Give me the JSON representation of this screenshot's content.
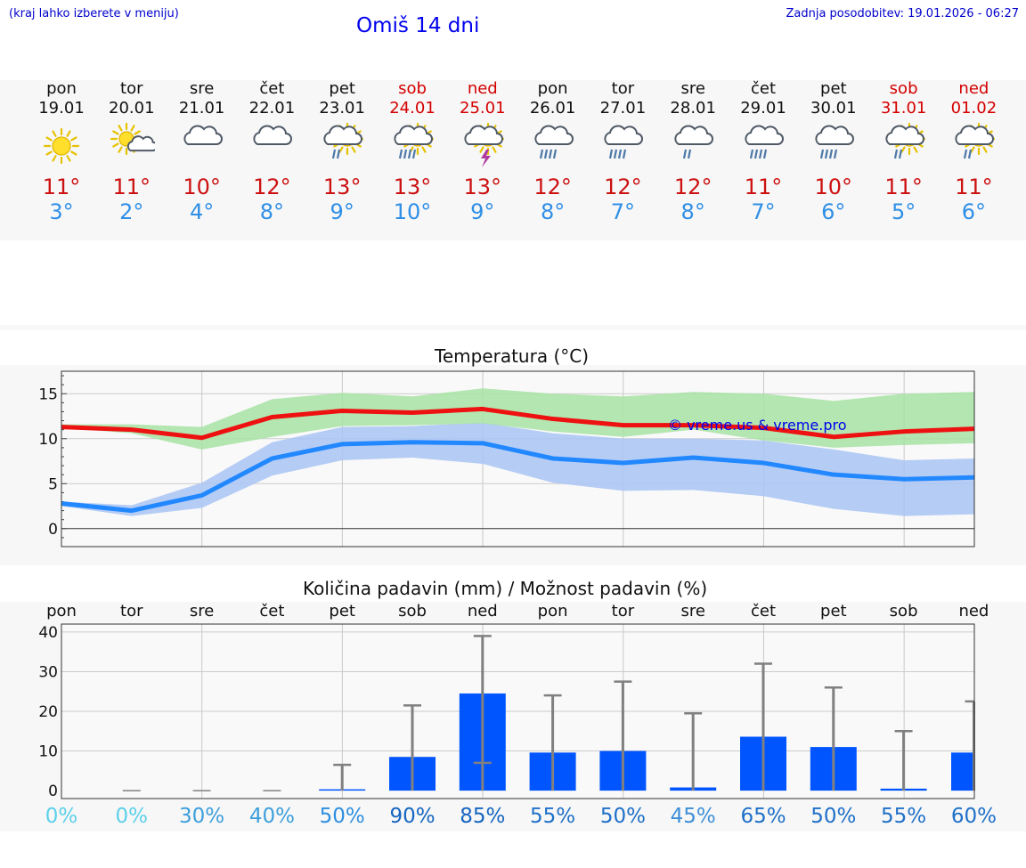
{
  "header": {
    "hint": "(kraj lahko izberete v meniju)",
    "title": "Omiš 14 dni",
    "updated": "Zadnja posodobitev: 19.01.2026 - 06:27"
  },
  "days": [
    {
      "wd": "pon",
      "date": "19.01",
      "icon": "sun-icon",
      "tmax": "11°",
      "tmin": "3°",
      "weekend": false
    },
    {
      "wd": "tor",
      "date": "20.01",
      "icon": "sun-cloud-icon",
      "tmax": "11°",
      "tmin": "2°",
      "weekend": false
    },
    {
      "wd": "sre",
      "date": "21.01",
      "icon": "cloud-icon",
      "tmax": "10°",
      "tmin": "4°",
      "weekend": false
    },
    {
      "wd": "čet",
      "date": "22.01",
      "icon": "cloud-icon",
      "tmax": "12°",
      "tmin": "8°",
      "weekend": false
    },
    {
      "wd": "pet",
      "date": "23.01",
      "icon": "sun-cloud-rain-icon",
      "tmax": "13°",
      "tmin": "9°",
      "weekend": false
    },
    {
      "wd": "sob",
      "date": "24.01",
      "icon": "sun-cloud-heavy-rain-icon",
      "tmax": "13°",
      "tmin": "10°",
      "weekend": true
    },
    {
      "wd": "ned",
      "date": "25.01",
      "icon": "sun-thunderstorm-icon",
      "tmax": "13°",
      "tmin": "9°",
      "weekend": true
    },
    {
      "wd": "pon",
      "date": "26.01",
      "icon": "cloud-heavy-rain-icon",
      "tmax": "12°",
      "tmin": "8°",
      "weekend": false
    },
    {
      "wd": "tor",
      "date": "27.01",
      "icon": "cloud-heavy-rain-icon",
      "tmax": "12°",
      "tmin": "7°",
      "weekend": false
    },
    {
      "wd": "sre",
      "date": "28.01",
      "icon": "cloud-rain-icon",
      "tmax": "12°",
      "tmin": "8°",
      "weekend": false
    },
    {
      "wd": "čet",
      "date": "29.01",
      "icon": "cloud-heavy-rain-icon",
      "tmax": "11°",
      "tmin": "7°",
      "weekend": false
    },
    {
      "wd": "pet",
      "date": "30.01",
      "icon": "cloud-heavy-rain-icon",
      "tmax": "10°",
      "tmin": "6°",
      "weekend": false
    },
    {
      "wd": "sob",
      "date": "31.01",
      "icon": "sun-cloud-rain-icon",
      "tmax": "11°",
      "tmin": "5°",
      "weekend": true
    },
    {
      "wd": "ned",
      "date": "01.02",
      "icon": "sun-cloud-rain-icon",
      "tmax": "11°",
      "tmin": "6°",
      "weekend": true
    }
  ],
  "colors": {
    "max_line": "#ee1111",
    "min_line": "#2288ff",
    "max_band": "#a7e3a3",
    "min_band": "#a9c4f5",
    "bar": "#0055ff",
    "error": "#808080",
    "watermark": "#0000ee"
  },
  "chart_data": [
    {
      "type": "line",
      "title": "Temperatura (°C)",
      "watermark": "© vreme.us & vreme.pro",
      "ylim": [
        -2,
        17.5
      ],
      "yticks": [
        0,
        5,
        10,
        15
      ],
      "x": [
        0,
        1,
        2,
        3,
        4,
        5,
        6,
        7,
        8,
        9,
        10,
        11,
        12,
        13
      ],
      "series": [
        {
          "name": "max",
          "values": [
            11.3,
            11.0,
            10.1,
            12.4,
            13.1,
            12.9,
            13.3,
            12.2,
            11.5,
            11.5,
            11.2,
            10.2,
            10.8,
            11.1
          ],
          "band_low": [
            11.2,
            10.6,
            8.8,
            10.2,
            11.4,
            11.5,
            11.7,
            10.8,
            10.2,
            11.0,
            9.8,
            9.0,
            9.3,
            9.5
          ],
          "band_high": [
            11.6,
            11.6,
            11.3,
            14.4,
            15.1,
            14.7,
            15.6,
            15.0,
            14.7,
            15.2,
            15.0,
            14.2,
            15.0,
            15.2
          ]
        },
        {
          "name": "min",
          "values": [
            2.8,
            2.0,
            3.7,
            7.8,
            9.4,
            9.6,
            9.5,
            7.8,
            7.3,
            7.9,
            7.3,
            6.0,
            5.5,
            5.7
          ],
          "band_low": [
            2.5,
            1.4,
            2.3,
            5.9,
            7.6,
            7.9,
            7.2,
            5.1,
            4.2,
            4.3,
            3.6,
            2.2,
            1.4,
            1.6
          ],
          "band_high": [
            3.0,
            2.6,
            5.1,
            9.6,
            11.3,
            11.4,
            11.8,
            10.6,
            10.0,
            10.0,
            9.8,
            8.8,
            7.6,
            7.8
          ]
        }
      ]
    },
    {
      "type": "bar",
      "title": "Količina padavin (mm) / Možnost padavin (%)",
      "categories": [
        "pon",
        "tor",
        "sre",
        "čet",
        "pet",
        "sob",
        "ned",
        "pon",
        "tor",
        "sre",
        "čet",
        "pet",
        "sob",
        "ned"
      ],
      "values": [
        0,
        0,
        0,
        0,
        0.2,
        8.5,
        24.5,
        9.6,
        10.0,
        0.8,
        13.6,
        11.0,
        0.5,
        9.6
      ],
      "err_low": [
        0,
        0,
        0,
        0,
        0,
        0,
        7.0,
        0,
        0,
        0,
        0,
        0,
        0,
        0
      ],
      "err_high": [
        0,
        0,
        0,
        0,
        6.5,
        21.5,
        39.0,
        24.0,
        27.5,
        19.5,
        32.0,
        26.0,
        15.0,
        22.5
      ],
      "ylim": [
        -2,
        42
      ],
      "yticks": [
        0,
        10,
        20,
        30,
        40
      ],
      "chance": [
        "0%",
        "0%",
        "30%",
        "40%",
        "50%",
        "90%",
        "85%",
        "55%",
        "50%",
        "45%",
        "65%",
        "50%",
        "55%",
        "60%"
      ],
      "chance_colors": [
        "#5cd0ea",
        "#5cd0ea",
        "#3d9fdc",
        "#3d9fdc",
        "#2f8fe0",
        "#1565c0",
        "#1565c0",
        "#1f70c8",
        "#1f70c8",
        "#3d8fd8",
        "#1f70c8",
        "#1f70c8",
        "#1f70c8",
        "#1f70c8"
      ]
    }
  ]
}
